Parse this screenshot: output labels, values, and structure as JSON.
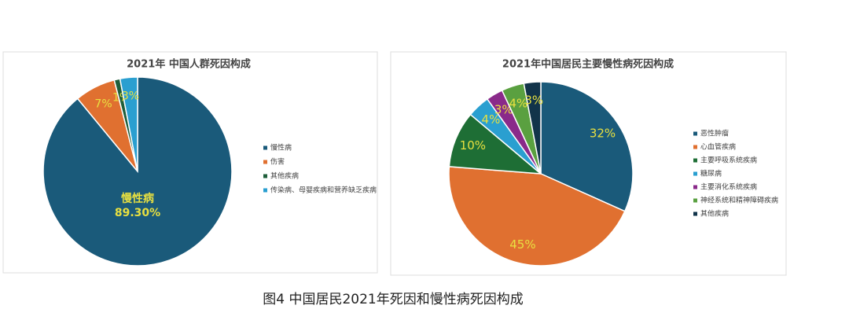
{
  "chart_data": [
    {
      "type": "pie",
      "title": "2021年 中国人群死因构成",
      "categories": [
        "慢性病",
        "伤害",
        "其他疾病",
        "传染病、母婴疾病和营养缺乏疾病"
      ],
      "values": [
        89.3,
        7,
        1,
        3
      ],
      "value_labels": [
        "89.30%",
        "7%",
        "1%",
        "3%"
      ],
      "colors": [
        "#1a5a7a",
        "#e07030",
        "#1e5e3a",
        "#2a9fd0"
      ],
      "legend": "right"
    },
    {
      "type": "pie",
      "title": "2021年中国居民主要慢性病死因构成",
      "categories": [
        "恶性肿瘤",
        "心血管疾病",
        "主要呼吸系统疾病",
        "糖尿病",
        "主要消化系统疾病",
        "神经系统和精神障碍疾病",
        "其他疾病"
      ],
      "values": [
        32,
        45,
        10,
        4,
        3,
        4,
        3
      ],
      "value_labels": [
        "32%",
        "45%",
        "10%",
        "4%",
        "3%",
        "4%",
        "3%"
      ],
      "colors": [
        "#1a5a7a",
        "#e07030",
        "#1e6e35",
        "#2a9fd0",
        "#8a2a8a",
        "#5aa040",
        "#12344a"
      ],
      "legend": "right"
    }
  ],
  "caption": "图4 中国居民2021年死因和慢性病死因构成"
}
